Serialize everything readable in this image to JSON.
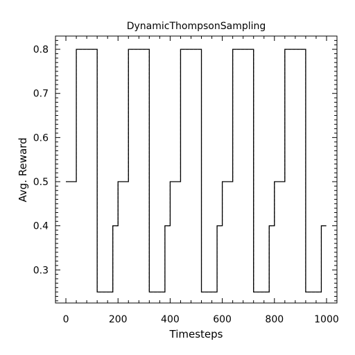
{
  "chart_data": {
    "type": "line",
    "title": "DynamicThompsonSampling",
    "xlabel": "Timesteps",
    "ylabel": "Avg. Reward",
    "xlim": [
      -40,
      1040
    ],
    "ylim": [
      0.225,
      0.83
    ],
    "x_ticks": [
      0,
      200,
      400,
      600,
      800,
      1000
    ],
    "y_ticks": [
      0.3,
      0.4,
      0.5,
      0.6,
      0.7,
      0.8
    ],
    "x_tick_labels": [
      "0",
      "200",
      "400",
      "600",
      "800",
      "1000"
    ],
    "y_tick_labels": [
      "0.3",
      "0.4",
      "0.5",
      "0.6",
      "0.7",
      "0.8"
    ],
    "grid": false,
    "series": [
      {
        "style": "solid",
        "color": "#000000",
        "x": [
          0,
          40,
          40,
          120,
          120,
          180,
          180,
          200,
          200,
          240,
          240,
          320,
          320,
          380,
          380,
          400,
          400,
          440,
          440,
          520,
          520,
          580,
          580,
          600,
          600,
          640,
          640,
          720,
          720,
          780,
          780,
          800,
          800,
          840,
          840,
          920,
          920,
          980,
          980,
          999
        ],
        "y": [
          0.5,
          0.5,
          0.8,
          0.8,
          0.25,
          0.25,
          0.4,
          0.4,
          0.5,
          0.5,
          0.8,
          0.8,
          0.25,
          0.25,
          0.4,
          0.4,
          0.5,
          0.5,
          0.8,
          0.8,
          0.25,
          0.25,
          0.4,
          0.4,
          0.5,
          0.5,
          0.8,
          0.8,
          0.25,
          0.25,
          0.4,
          0.4,
          0.5,
          0.5,
          0.8,
          0.8,
          0.25,
          0.25,
          0.4,
          0.4
        ]
      },
      {
        "style": "dashed",
        "color": "#000000",
        "x": [
          0,
          40,
          40,
          120,
          120,
          180,
          180,
          200,
          200,
          240,
          240,
          320,
          320,
          380,
          380,
          400,
          400,
          440,
          440,
          520,
          520,
          580,
          580,
          600,
          600,
          640,
          640,
          720,
          720,
          780,
          780,
          800,
          800,
          840,
          840,
          920,
          920,
          980,
          980,
          999
        ],
        "y": [
          0.5,
          0.5,
          0.8,
          0.8,
          0.25,
          0.25,
          0.4,
          0.4,
          0.5,
          0.5,
          0.8,
          0.8,
          0.25,
          0.25,
          0.4,
          0.4,
          0.5,
          0.5,
          0.8,
          0.8,
          0.25,
          0.25,
          0.4,
          0.4,
          0.5,
          0.5,
          0.8,
          0.8,
          0.25,
          0.25,
          0.4,
          0.4,
          0.5,
          0.5,
          0.8,
          0.8,
          0.25,
          0.25,
          0.4,
          0.4
        ]
      }
    ]
  }
}
